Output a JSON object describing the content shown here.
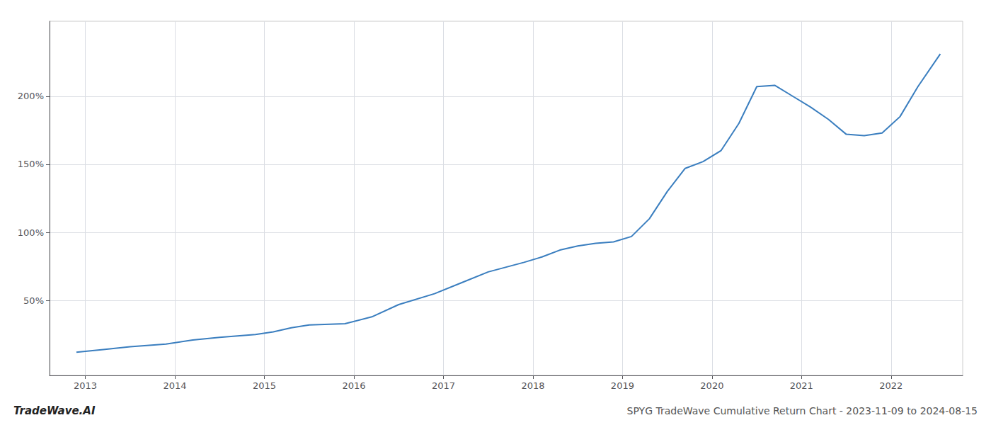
{
  "chart_data": {
    "type": "line",
    "title": "SPYG TradeWave Cumulative Return Chart - 2023-11-09 to 2024-08-15",
    "annotations": [
      "TradeWave.AI"
    ],
    "x": [
      2012.9,
      2013.2,
      2013.5,
      2013.9,
      2014.2,
      2014.5,
      2014.9,
      2015.1,
      2015.3,
      2015.5,
      2015.9,
      2016.2,
      2016.5,
      2016.9,
      2017.2,
      2017.5,
      2017.9,
      2018.1,
      2018.3,
      2018.5,
      2018.7,
      2018.9,
      2019.1,
      2019.3,
      2019.5,
      2019.7,
      2019.9,
      2020.1,
      2020.3,
      2020.5,
      2020.7,
      2020.9,
      2021.1,
      2021.3,
      2021.5,
      2021.7,
      2021.9,
      2022.1,
      2022.3,
      2022.55
    ],
    "values": [
      12,
      14,
      16,
      18,
      21,
      23,
      25,
      27,
      30,
      32,
      33,
      38,
      47,
      55,
      63,
      71,
      78,
      82,
      87,
      90,
      92,
      93,
      97,
      110,
      130,
      147,
      152,
      160,
      180,
      207,
      208,
      200,
      192,
      183,
      172,
      171,
      173,
      185,
      207,
      231
    ],
    "color": "#3a7ebf",
    "xlim": [
      2012.6,
      2022.8
    ],
    "xticks": [
      2013,
      2014,
      2015,
      2016,
      2017,
      2018,
      2019,
      2020,
      2021,
      2022
    ],
    "ylim": [
      -5,
      255
    ],
    "yticks": [
      {
        "value": 50,
        "label": "50%"
      },
      {
        "value": 100,
        "label": "100%"
      },
      {
        "value": 150,
        "label": "150%"
      },
      {
        "value": 200,
        "label": "200%"
      }
    ],
    "grid": true
  }
}
